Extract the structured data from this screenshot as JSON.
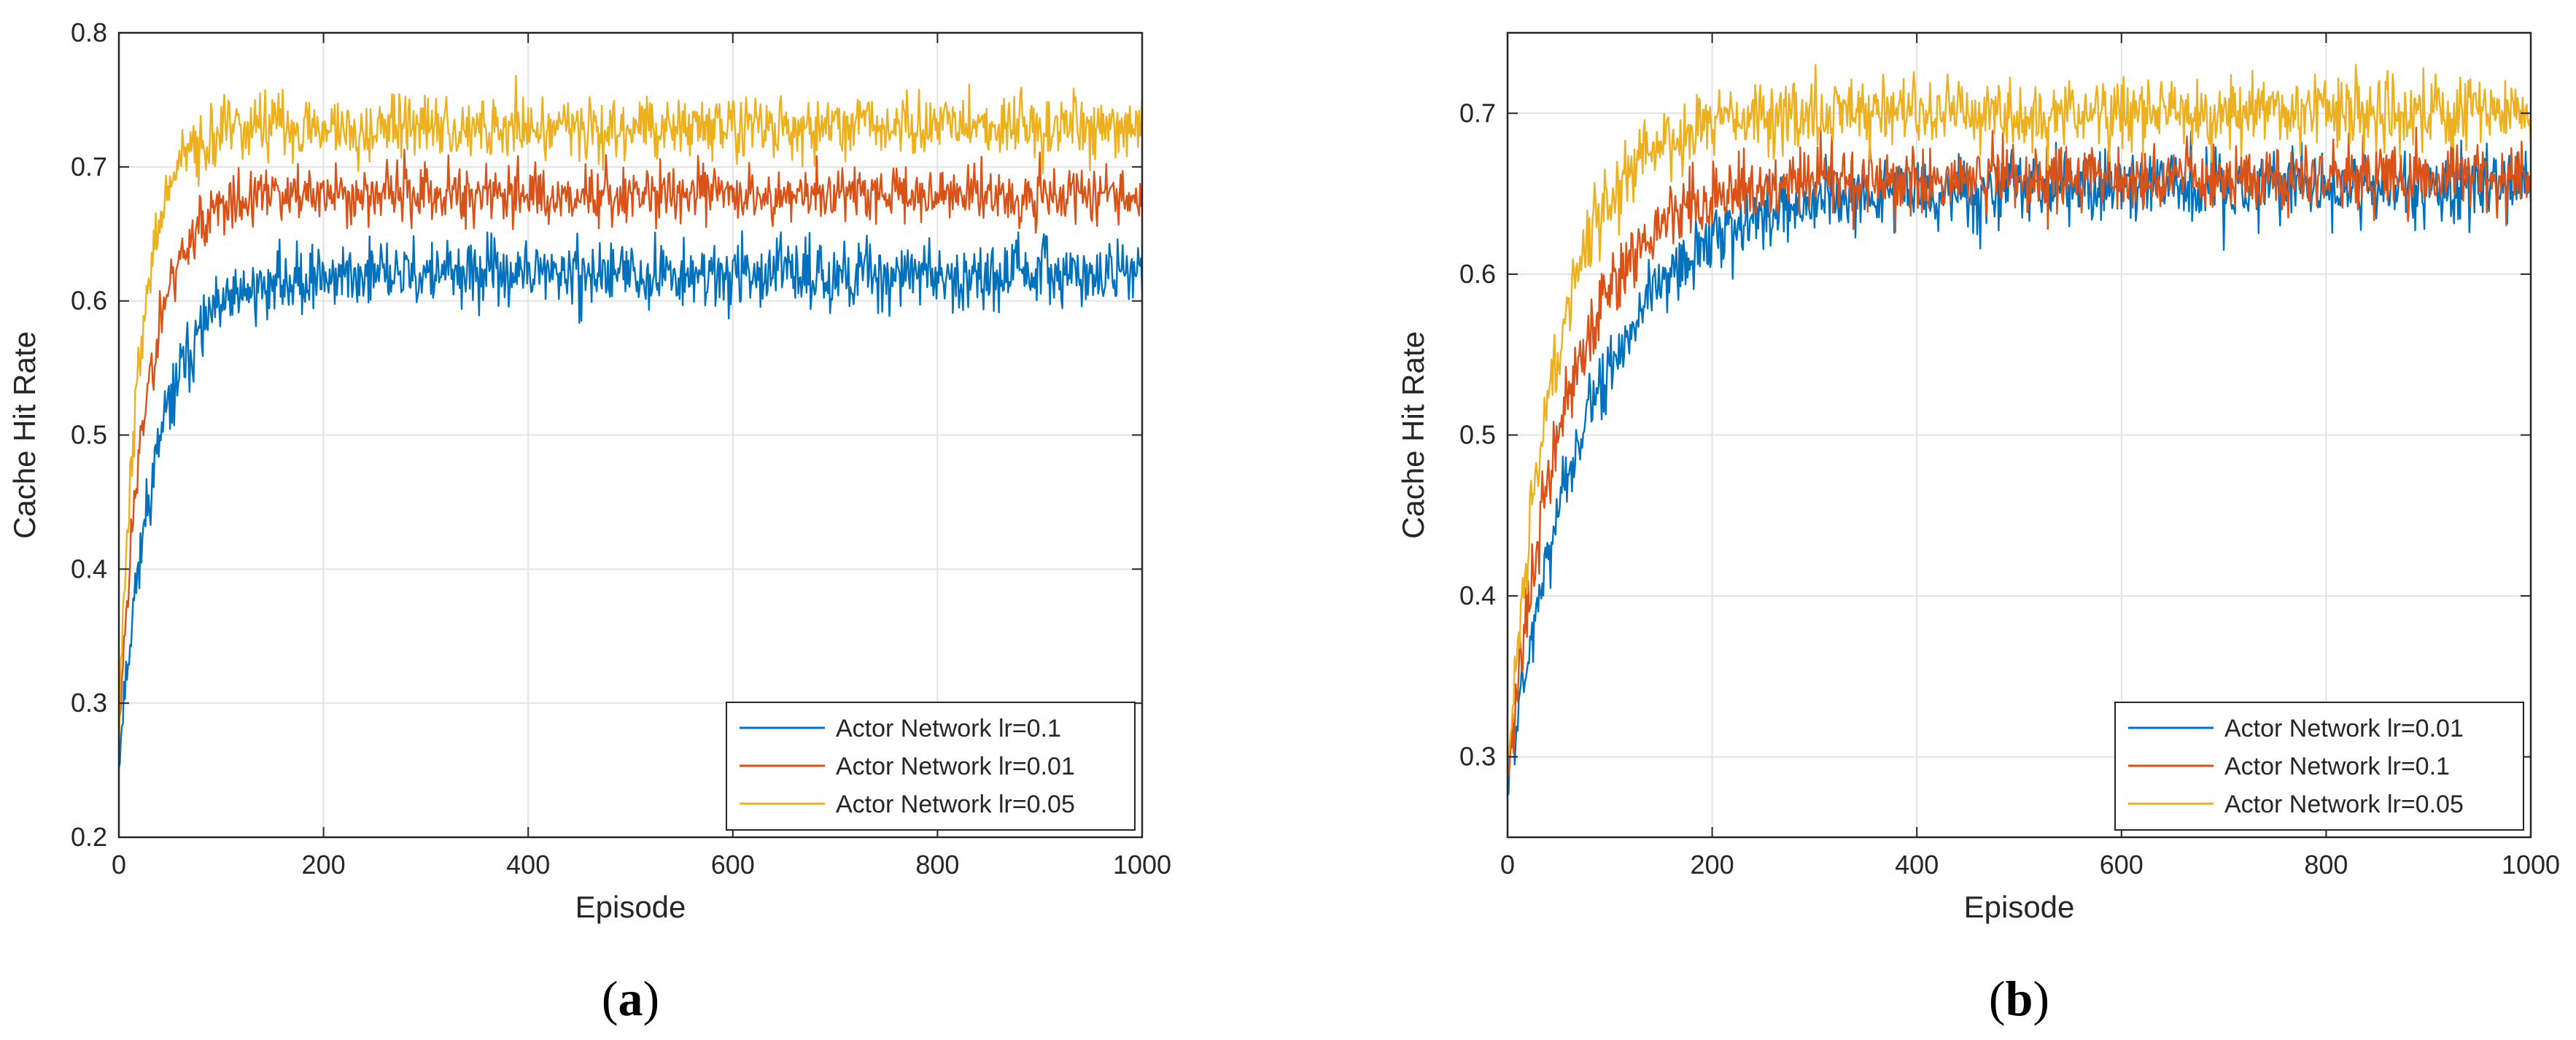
{
  "chart_data": [
    {
      "type": "line",
      "panel_label": "(a)",
      "panel_letter": "a",
      "xlabel": "Episode",
      "ylabel": "Cache Hit Rate",
      "xlim": [
        0,
        1000
      ],
      "ylim": [
        0.2,
        0.8
      ],
      "xticks": [
        0,
        200,
        400,
        600,
        800,
        1000
      ],
      "yticks": [
        0.2,
        0.3,
        0.4,
        0.5,
        0.6,
        0.7,
        0.8
      ],
      "grid": true,
      "legend_position": "bottom-right",
      "series": [
        {
          "name": "Actor Network lr=0.1",
          "color": "#0072BD",
          "start": 0.26,
          "plateau": 0.62,
          "tau": 38,
          "noise": 0.012,
          "seed": 11
        },
        {
          "name": "Actor Network lr=0.01",
          "color": "#D95319",
          "start": 0.28,
          "plateau": 0.68,
          "tau": 28,
          "noise": 0.011,
          "seed": 23
        },
        {
          "name": "Actor Network lr=0.05",
          "color": "#EDB120",
          "start": 0.29,
          "plateau": 0.73,
          "tau": 22,
          "noise": 0.012,
          "seed": 37
        }
      ]
    },
    {
      "type": "line",
      "panel_label": "(b)",
      "panel_letter": "b",
      "xlabel": "Episode",
      "ylabel": "Cache Hit Rate",
      "xlim": [
        0,
        1000
      ],
      "ylim": [
        0.25,
        0.75
      ],
      "xticks": [
        0,
        200,
        400,
        600,
        800,
        1000
      ],
      "yticks": [
        0.3,
        0.4,
        0.5,
        0.6,
        0.7
      ],
      "grid": true,
      "legend_position": "bottom-right",
      "series": [
        {
          "name": "Actor Network lr=0.01",
          "color": "#0072BD",
          "start": 0.29,
          "plateau": 0.655,
          "tau": 85,
          "noise": 0.011,
          "seed": 5
        },
        {
          "name": "Actor Network lr=0.1",
          "color": "#D95319",
          "start": 0.29,
          "plateau": 0.66,
          "tau": 60,
          "noise": 0.011,
          "seed": 17
        },
        {
          "name": "Actor Network lr=0.05",
          "color": "#EDB120",
          "start": 0.29,
          "plateau": 0.7,
          "tau": 48,
          "noise": 0.011,
          "seed": 29
        }
      ]
    }
  ]
}
